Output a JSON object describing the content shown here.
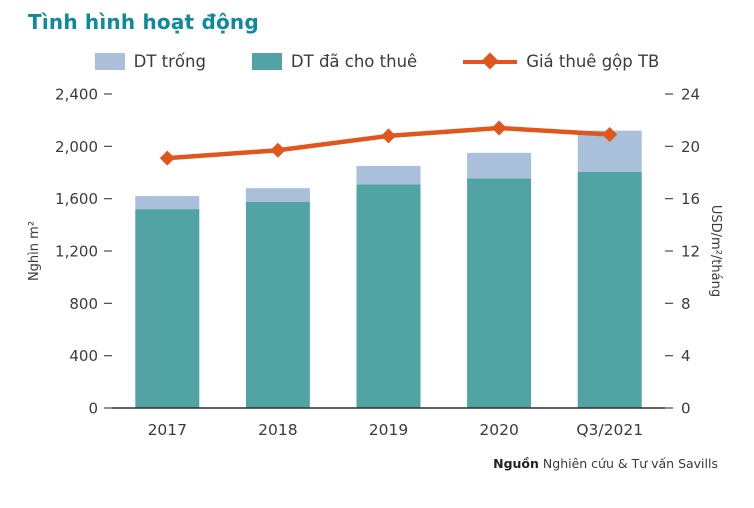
{
  "title": "Tình hình hoạt động",
  "source": {
    "label": "Nguồn",
    "text": "Nghiên cứu & Tư vấn Savills"
  },
  "colors": {
    "title_teal": "#0d8a9b",
    "vacant_bar": "#aabfd9",
    "leased_bar": "#52a3a3",
    "rent_line": "#e0561c"
  },
  "chart_data": {
    "type": "bar",
    "stacked": true,
    "categories": [
      "2017",
      "2018",
      "2019",
      "2020",
      "Q3/2021"
    ],
    "series": [
      {
        "name": "DT trống",
        "type": "bar",
        "stack_order": 2,
        "axis": "left",
        "color": "#aabfd9",
        "values": [
          100,
          105,
          140,
          195,
          315
        ]
      },
      {
        "name": "DT đã cho thuê",
        "type": "bar",
        "stack_order": 1,
        "axis": "left",
        "color": "#52a3a3",
        "values": [
          1520,
          1575,
          1710,
          1755,
          1805
        ]
      },
      {
        "name": "Giá thuê gộp TB",
        "type": "line",
        "axis": "right",
        "color": "#e0561c",
        "values": [
          19.1,
          19.7,
          20.8,
          21.4,
          20.9
        ]
      }
    ],
    "title": "Tình hình hoạt động",
    "xlabel": "",
    "ylabel_left": "Nghìn m²",
    "ylabel_right": "USD/m²/tháng",
    "ylim_left": [
      0,
      2400
    ],
    "yticks_left": [
      0,
      400,
      800,
      1200,
      1600,
      2000,
      2400
    ],
    "ylim_right": [
      0,
      24
    ],
    "yticks_right": [
      0,
      4,
      8,
      12,
      16,
      20,
      24
    ],
    "grid": false,
    "legend_position": "top"
  }
}
